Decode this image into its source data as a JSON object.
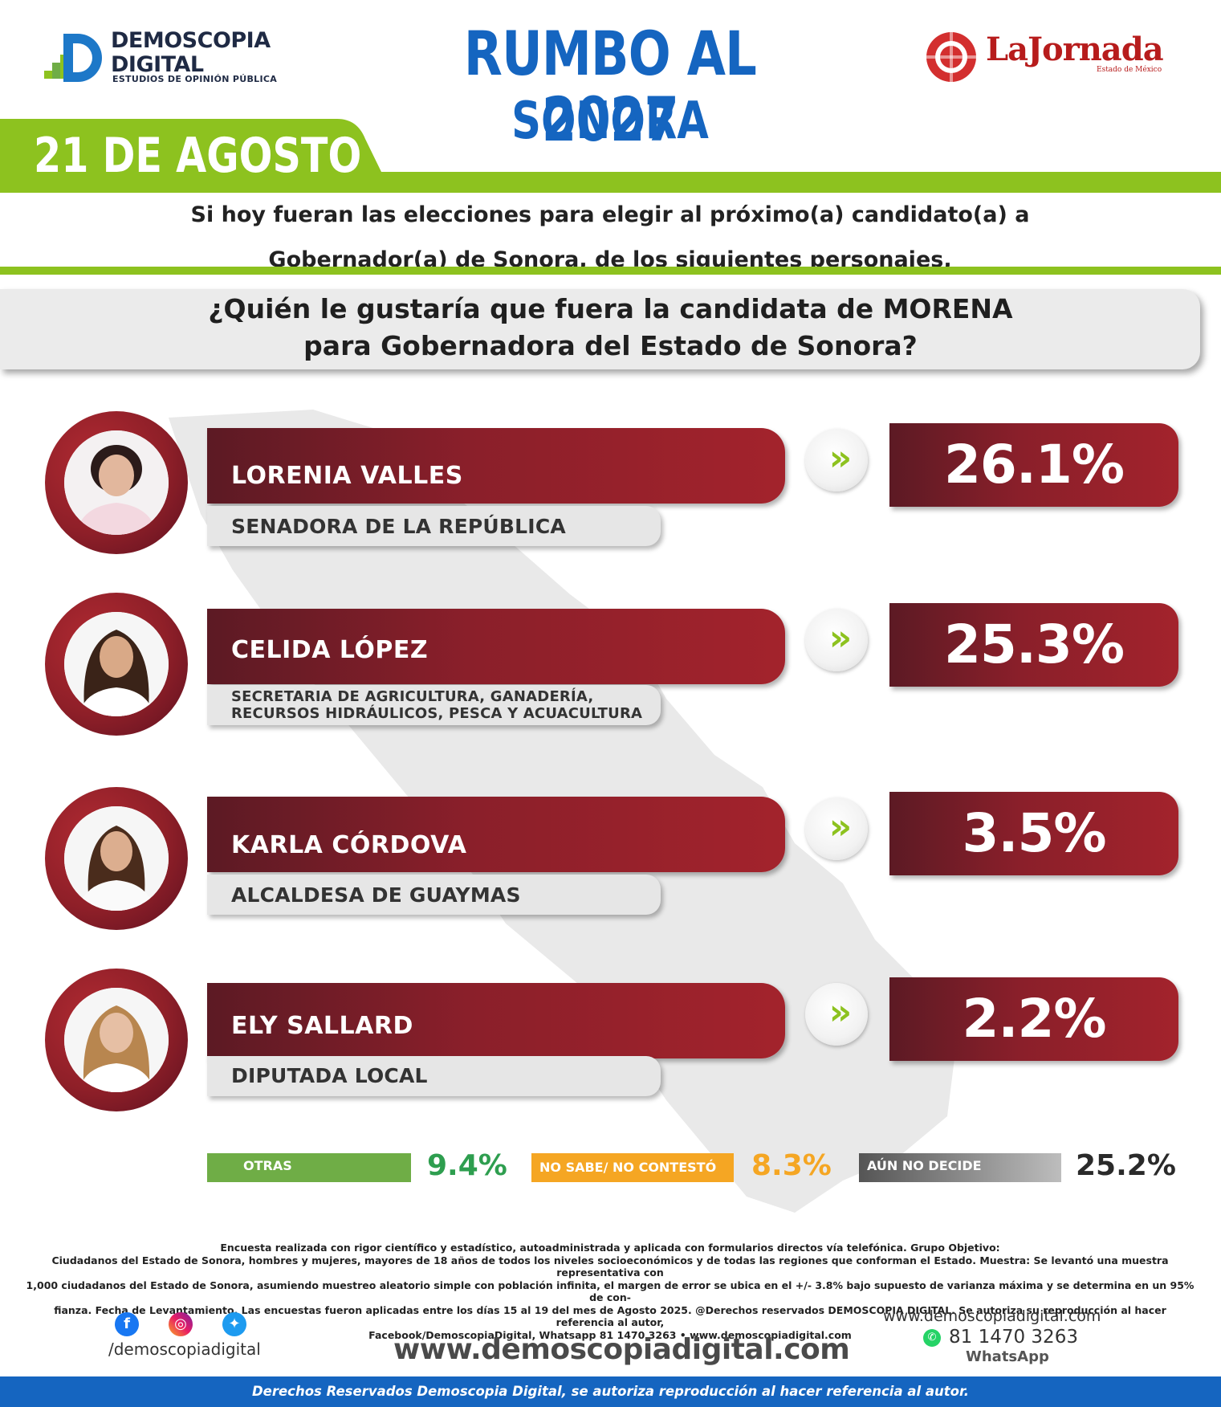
{
  "header": {
    "brand_name": "DEMOSCOPIA DIGITAL",
    "brand_tagline": "ESTUDIOS DE OPINIÓN PÚBLICA",
    "headline": "RUMBO AL 2027",
    "region": "SONORA",
    "date": "21 DE AGOSTO",
    "partner_name": "LaJornada",
    "partner_sub": "Estado de México"
  },
  "intro": {
    "line1": "Si hoy fueran las elecciones para elegir al próximo(a) candidato(a) a",
    "line2": "Gobernador(a) de Sonora, de los siguientes personajes,"
  },
  "question": {
    "line1": "¿Quién le gustaría que fuera la candidata de MORENA",
    "line2": "para Gobernadora del Estado de Sonora?"
  },
  "chart_data": {
    "type": "bar",
    "categories": [
      "LORENIA VALLES",
      "CELIDA LÓPEZ",
      "KARLA CÓRDOVA",
      "ELY SALLARD"
    ],
    "values": [
      26.1,
      25.3,
      3.5,
      2.2
    ],
    "value_labels": [
      "26.1%",
      "25.3%",
      "3.5%",
      "2.2%"
    ],
    "roles": [
      "SENADORA DE LA REPÚBLICA",
      "SECRETARIA DE AGRICULTURA, GANADERÍA, RECURSOS HIDRÁULICOS, PESCA Y ACUACULTURA",
      "ALCALDESA DE GUAYMAS",
      "DIPUTADA LOCAL"
    ],
    "others": [
      {
        "label": "OTRAS",
        "value": 9.4,
        "value_label": "9.4%",
        "color": "#6fad46"
      },
      {
        "label": "NO SABE/ NO CONTESTÓ",
        "value": 8.3,
        "value_label": "8.3%",
        "color": "#f5a623"
      },
      {
        "label": "AÚN NO DECIDE",
        "value": 25.2,
        "value_label": "25.2%",
        "color": "#6b6b6b"
      }
    ],
    "unit": "%"
  },
  "rows": [
    {
      "name": "LORENIA VALLES",
      "role": "SENADORA DE LA REPÚBLICA",
      "pct": "26.1%"
    },
    {
      "name": "CELIDA LÓPEZ",
      "role_line1": "SECRETARIA DE AGRICULTURA, GANADERÍA,",
      "role_line2": "RECURSOS HIDRÁULICOS, PESCA Y ACUACULTURA",
      "pct": "25.3%"
    },
    {
      "name": "KARLA CÓRDOVA",
      "role": "ALCALDESA DE GUAYMAS",
      "pct": "3.5%"
    },
    {
      "name": "ELY SALLARD",
      "role": "DIPUTADA LOCAL",
      "pct": "2.2%"
    }
  ],
  "others_row": [
    {
      "label": "OTRAS",
      "value": "9.4%"
    },
    {
      "label": "NO SABE/ NO CONTESTÓ",
      "value": "8.3%"
    },
    {
      "label": "AÚN NO DECIDE",
      "value": "25.2%"
    }
  ],
  "footer": {
    "method_1": "Encuesta realizada con rigor científico y estadístico, autoadministrada y aplicada con formularios directos vía telefónica. Grupo Objetivo:",
    "method_2": "Ciudadanos del Estado de Sonora, hombres y mujeres, mayores de 18 años de todos los niveles socioeconómicos y de todas las regiones que conforman el Estado. Muestra: Se levantó una muestra representativa con",
    "method_3": "1,000 ciudadanos del Estado de Sonora, asumiendo muestreo aleatorio simple con población infinita, el margen de error se ubica en el +/- 3.8% bajo supuesto de varianza máxima y se determina en un 95% de con-",
    "method_4": "fianza. Fecha de Levantamiento. Las encuestas fueron aplicadas entre los días 15 al 19 del mes de Agosto 2025. @Derechos reservados DEMOSCOPIA DIGITAL. Se autoriza su reproducción al hacer referencia al autor,",
    "method_5": "Facebook/DemoscopiaDigital, Whatsapp 81 1470 3263 • www.demoscopiadigital.com",
    "handle": "/demoscopiadigital",
    "website": "www.demoscopiadigital.com",
    "website_small": "www.demoscopiadigital.com",
    "whatsapp_number": "81 1470 3263",
    "whatsapp_label": "WhatsApp",
    "rights": "Derechos Reservados Demoscopia Digital, se autoriza reproducción al hacer referencia al autor."
  },
  "colors": {
    "accent_blue": "#1565c0",
    "accent_green": "#8dc21f",
    "bar_maroon": "#8a1f2a"
  }
}
